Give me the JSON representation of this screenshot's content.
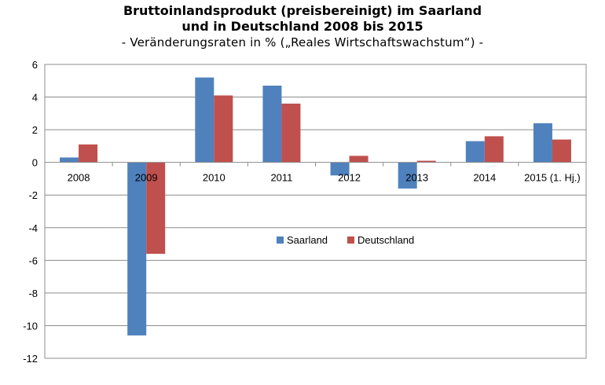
{
  "chart_data": {
    "type": "bar",
    "title": "Bruttoinlandsprodukt (preisbereinigt) im Saarland",
    "title_line2": "und in Deutschland 2008 bis 2015",
    "subtitle": "- Veränderungsraten in % („Reales Wirtschaftswachstum“) -",
    "categories": [
      "2008",
      "2009",
      "2010",
      "2011",
      "2012",
      "2013",
      "2014",
      "2015 (1. Hj.)"
    ],
    "series": [
      {
        "name": "Saarland",
        "color": "#4F81BD",
        "values": [
          0.3,
          -10.6,
          5.2,
          4.7,
          -0.8,
          -1.6,
          1.3,
          2.4
        ]
      },
      {
        "name": "Deutschland",
        "color": "#C0504D",
        "values": [
          1.1,
          -5.6,
          4.1,
          3.6,
          0.4,
          0.1,
          1.6,
          1.4
        ]
      }
    ],
    "ylim": [
      -12,
      6
    ],
    "yticks": [
      6,
      4,
      2,
      0,
      -2,
      -4,
      -6,
      -8,
      -10,
      -12
    ],
    "grid": true,
    "legend_position": "center"
  }
}
